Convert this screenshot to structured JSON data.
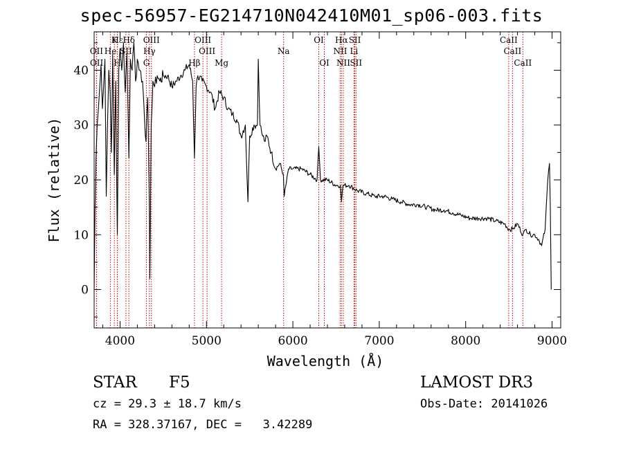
{
  "chart_data": {
    "type": "line",
    "title": "spec-56957-EG214710N042410M01_sp06-003.fits",
    "xlabel": "Wavelength (Å)",
    "ylabel": "Flux (relative)",
    "xlim": [
      3700,
      9100
    ],
    "ylim": [
      -7,
      47
    ],
    "xticks": [
      4000,
      5000,
      6000,
      7000,
      8000,
      9000
    ],
    "yticks": [
      0,
      10,
      20,
      30,
      40
    ],
    "series": [
      {
        "name": "flux",
        "color": "#000000",
        "x": [
          3700,
          3710,
          3722,
          3735,
          3750,
          3765,
          3780,
          3795,
          3810,
          3825,
          3840,
          3855,
          3870,
          3885,
          3900,
          3915,
          3933,
          3950,
          3968,
          3985,
          4000,
          4020,
          4040,
          4060,
          4080,
          4102,
          4120,
          4140,
          4160,
          4180,
          4200,
          4230,
          4260,
          4300,
          4320,
          4340,
          4345,
          4360,
          4380,
          4400,
          4430,
          4460,
          4500,
          4550,
          4600,
          4650,
          4700,
          4750,
          4800,
          4840,
          4861,
          4880,
          4900,
          4950,
          5000,
          5050,
          5100,
          5150,
          5200,
          5250,
          5300,
          5350,
          5400,
          5450,
          5480,
          5500,
          5550,
          5590,
          5600,
          5620,
          5650,
          5680,
          5700,
          5750,
          5800,
          5850,
          5890,
          5900,
          5950,
          6000,
          6100,
          6200,
          6280,
          6300,
          6320,
          6400,
          6500,
          6550,
          6563,
          6580,
          6650,
          6750,
          6850,
          6950,
          7050,
          7150,
          7250,
          7350,
          7450,
          7550,
          7650,
          7750,
          7850,
          7950,
          8050,
          8150,
          8250,
          8350,
          8450,
          8498,
          8542,
          8600,
          8662,
          8700,
          8750,
          8800,
          8850,
          8880,
          8920,
          8950,
          8970,
          8980,
          8990
        ],
        "y": [
          0,
          14,
          24,
          30,
          33,
          37,
          41,
          33,
          37,
          42,
          17,
          30,
          40,
          36,
          25,
          43,
          21,
          38,
          10,
          40,
          44,
          40,
          45,
          36,
          43,
          24,
          42,
          40,
          45,
          38,
          42,
          40,
          38,
          27,
          35,
          14,
          2,
          30,
          38,
          37,
          39,
          38,
          39,
          39,
          37,
          38,
          39,
          40,
          41,
          38,
          24,
          37,
          39,
          38,
          37,
          36,
          33,
          36,
          35,
          33,
          32,
          31,
          28,
          30,
          16,
          28,
          30,
          30,
          42,
          30,
          28,
          27,
          28,
          25,
          22,
          23,
          21,
          17,
          22,
          22,
          22,
          21,
          20,
          26,
          20,
          20,
          19,
          19,
          16,
          19,
          19,
          18,
          17.5,
          17,
          17,
          16.5,
          16,
          15.5,
          15.5,
          15,
          14.5,
          14.5,
          14,
          13.5,
          13,
          13,
          13,
          12.5,
          12,
          11,
          11,
          12,
          10,
          11,
          10,
          10,
          9,
          8,
          11,
          20,
          23,
          15,
          0
        ]
      }
    ],
    "lines": [
      {
        "label": "Hε",
        "x": 3970,
        "row": 1
      },
      {
        "label": "K",
        "x": 3934,
        "row": 1
      },
      {
        "label": "Hδ",
        "x": 4102,
        "row": 1
      },
      {
        "label": "OIII",
        "x": 4363,
        "row": 1
      },
      {
        "label": "OIII",
        "x": 4959,
        "row": 1
      },
      {
        "label": "OI",
        "x": 6300,
        "row": 1
      },
      {
        "label": "Hα",
        "x": 6563,
        "row": 1
      },
      {
        "label": "SII",
        "x": 6717,
        "row": 1
      },
      {
        "label": "CaII",
        "x": 8498,
        "row": 1
      },
      {
        "label": "OII",
        "x": 3727,
        "row": 2
      },
      {
        "label": "He",
        "x": 3889,
        "row": 2
      },
      {
        "label": "SII",
        "x": 4068,
        "row": 2
      },
      {
        "label": "Hγ",
        "x": 4340,
        "row": 2
      },
      {
        "label": "OIII",
        "x": 5007,
        "row": 2
      },
      {
        "label": "Na",
        "x": 5893,
        "row": 2
      },
      {
        "label": "NII",
        "x": 6548,
        "row": 2
      },
      {
        "label": "Li",
        "x": 6708,
        "row": 2
      },
      {
        "label": "CaII",
        "x": 8542,
        "row": 2
      },
      {
        "label": "OII",
        "x": 3729,
        "row": 3
      },
      {
        "label": "H",
        "x": 3968,
        "row": 3
      },
      {
        "label": "G",
        "x": 4305,
        "row": 3
      },
      {
        "label": "Hβ",
        "x": 4861,
        "row": 3
      },
      {
        "label": "Mg",
        "x": 5175,
        "row": 3
      },
      {
        "label": "OI",
        "x": 6364,
        "row": 3
      },
      {
        "label": "NII",
        "x": 6584,
        "row": 3
      },
      {
        "label": "SII",
        "x": 6731,
        "row": 3
      },
      {
        "label": "CaII",
        "x": 8662,
        "row": 3
      }
    ],
    "line_color": "#cc0000",
    "axis_color": "#000000"
  },
  "info": {
    "class": "STAR",
    "subclass": "F5",
    "survey": "LAMOST DR3",
    "redshift": "cz = 29.3 ± 18.7 km/s",
    "obs_date": "Obs-Date: 20141026",
    "ra": "RA = 328.37167,",
    "dec": "DEC =   3.42289"
  }
}
